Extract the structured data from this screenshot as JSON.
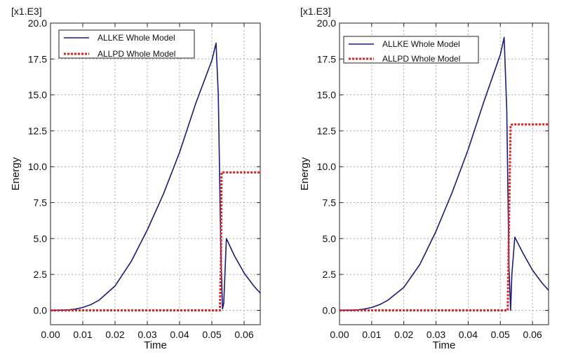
{
  "chart_data": [
    {
      "type": "line",
      "multiplier_label": "[x1.E3]",
      "xlabel": "Time",
      "ylabel": "Energy",
      "xlim": [
        0.0,
        0.065
      ],
      "ylim": [
        -1.0,
        20.0
      ],
      "x_ticks": [
        "0.00",
        "0.01",
        "0.02",
        "0.03",
        "0.04",
        "0.05",
        "0.06"
      ],
      "y_ticks": [
        "0.0",
        "2.5",
        "5.0",
        "7.5",
        "10.0",
        "12.5",
        "15.0",
        "17.5",
        "20.0"
      ],
      "grid": true,
      "legend_position": "top-left",
      "series": [
        {
          "name": "ALLKE Whole Model",
          "color": "#1a1a80",
          "style": "solid",
          "x": [
            0.0,
            0.005,
            0.0075,
            0.01,
            0.0125,
            0.015,
            0.02,
            0.025,
            0.03,
            0.035,
            0.04,
            0.045,
            0.05,
            0.0513,
            0.052,
            0.0528,
            0.0533,
            0.0537,
            0.0545,
            0.057,
            0.06,
            0.063,
            0.065
          ],
          "y": [
            0.0,
            0.02,
            0.08,
            0.2,
            0.4,
            0.7,
            1.7,
            3.4,
            5.6,
            8.1,
            11.0,
            14.4,
            17.4,
            18.6,
            15.0,
            4.0,
            0.1,
            0.5,
            5.0,
            3.8,
            2.6,
            1.7,
            1.2
          ]
        },
        {
          "name": "ALLPD Whole Model",
          "color": "#e8201e",
          "style": "dotted",
          "x": [
            0.0,
            0.0525,
            0.0528,
            0.053,
            0.054,
            0.065
          ],
          "y": [
            0.0,
            0.0,
            3.0,
            9.6,
            9.6,
            9.6
          ]
        }
      ]
    },
    {
      "type": "line",
      "multiplier_label": "[x1.E3]",
      "xlabel": "Time",
      "ylabel": "Energy",
      "xlim": [
        0.0,
        0.065
      ],
      "ylim": [
        -1.0,
        20.0
      ],
      "x_ticks": [
        "0.00",
        "0.01",
        "0.02",
        "0.03",
        "0.04",
        "0.05",
        "0.06"
      ],
      "y_ticks": [
        "0.0",
        "2.5",
        "5.0",
        "7.5",
        "10.0",
        "12.5",
        "15.0",
        "17.5",
        "20.0"
      ],
      "grid": true,
      "legend_position": "top-left",
      "series": [
        {
          "name": "ALLKE Whole Model",
          "color": "#1a1a80",
          "style": "solid",
          "x": [
            0.0,
            0.005,
            0.0075,
            0.01,
            0.0125,
            0.015,
            0.02,
            0.025,
            0.03,
            0.035,
            0.04,
            0.045,
            0.05,
            0.0512,
            0.052,
            0.0527,
            0.0532,
            0.0536,
            0.0545,
            0.057,
            0.06,
            0.063,
            0.065
          ],
          "y": [
            0.0,
            0.02,
            0.08,
            0.2,
            0.4,
            0.7,
            1.6,
            3.2,
            5.5,
            8.2,
            11.2,
            14.6,
            17.8,
            19.0,
            14.0,
            3.0,
            0.0,
            2.5,
            5.1,
            4.0,
            2.8,
            1.9,
            1.4
          ]
        },
        {
          "name": "ALLPD Whole Model",
          "color": "#e8201e",
          "style": "dotted",
          "x": [
            0.0,
            0.0523,
            0.0527,
            0.0532,
            0.054,
            0.065
          ],
          "y": [
            0.0,
            0.0,
            6.0,
            12.9,
            12.95,
            12.95
          ]
        }
      ]
    }
  ]
}
